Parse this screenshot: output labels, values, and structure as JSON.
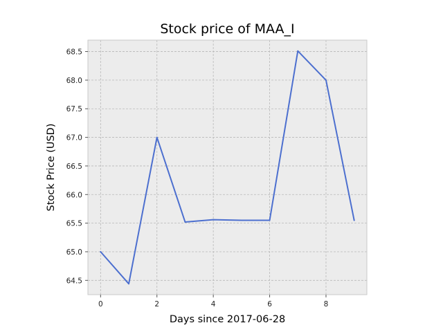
{
  "chart_data": {
    "type": "line",
    "title": "Stock price of MAA_I",
    "xlabel": "Days since 2017-06-28",
    "ylabel": "Stock Price (USD)",
    "x": [
      0,
      1,
      2,
      3,
      4,
      5,
      6,
      7,
      8,
      9
    ],
    "series": [
      {
        "values": [
          65.0,
          64.44,
          67.0,
          65.52,
          65.56,
          65.55,
          65.55,
          68.51,
          68.0,
          65.55
        ],
        "color": "#4c6fcf"
      }
    ],
    "xlim": [
      -0.45,
      9.45
    ],
    "ylim": [
      64.25,
      68.7
    ],
    "xticks": [
      0,
      2,
      4,
      6,
      8
    ],
    "yticks": [
      64.5,
      65.0,
      65.5,
      66.0,
      66.5,
      67.0,
      67.5,
      68.0,
      68.5
    ],
    "grid": true,
    "background": "#ececec"
  }
}
